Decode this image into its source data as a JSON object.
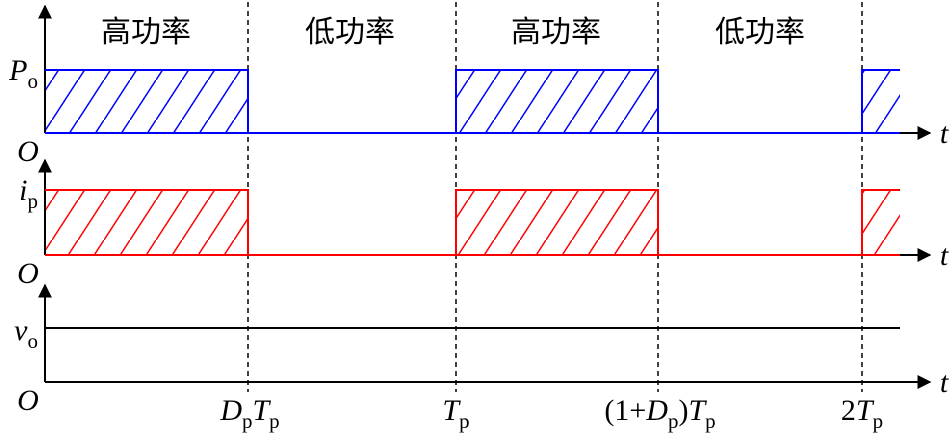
{
  "regions": [
    "高功率",
    "低功率",
    "高功率",
    "低功率"
  ],
  "rows": [
    {
      "label": [
        {
          "text": "P",
          "sub": "o"
        }
      ],
      "origin": "O",
      "axis": "t"
    },
    {
      "label": [
        {
          "text": "i",
          "sub": "p"
        }
      ],
      "origin": "O",
      "axis": "t"
    },
    {
      "label": [
        {
          "text": "v",
          "sub": "o"
        }
      ],
      "origin": "O",
      "axis": "t"
    }
  ],
  "ticks": [
    [
      {
        "text": "D",
        "sub": "p"
      },
      {
        "text": "T",
        "sub": "p"
      }
    ],
    [
      {
        "text": "T",
        "sub": "p"
      }
    ],
    [
      {
        "text": "(1+"
      },
      {
        "text": "D",
        "sub": "p"
      },
      {
        "text": ")"
      },
      {
        "text": "T",
        "sub": "p"
      }
    ],
    [
      {
        "text": "2"
      },
      {
        "text": "T",
        "sub": "p"
      }
    ]
  ]
}
